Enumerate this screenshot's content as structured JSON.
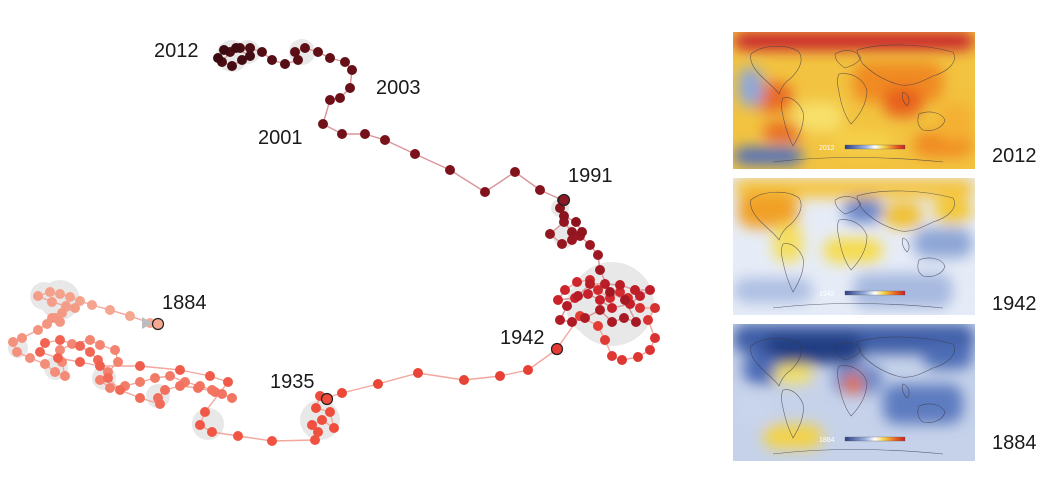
{
  "year_labels": {
    "y2012": "2012",
    "y2003": "2003",
    "y2001": "2001",
    "y1991": "1991",
    "y1884": "1884",
    "y1942": "1942",
    "y1935": "1935"
  },
  "maps": [
    {
      "year": "2012",
      "inset_label": "2012",
      "palette": "warm"
    },
    {
      "year": "1942",
      "inset_label": "1942",
      "palette": "mixed"
    },
    {
      "year": "1884",
      "inset_label": "1884",
      "palette": "cool"
    }
  ],
  "colors": {
    "early": "#f5a892",
    "mid": "#ef4a3a",
    "late": "#c8202a",
    "latest": "#3a0a10",
    "trail": "#e58a8a",
    "halo": "#e8e8e8"
  }
}
